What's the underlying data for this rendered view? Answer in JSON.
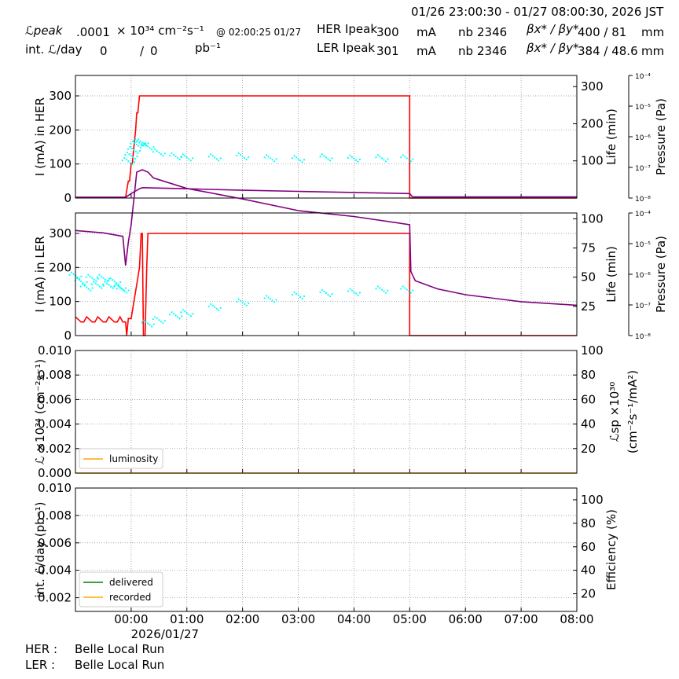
{
  "header": {
    "time_range": "01/26 23:00:30 - 01/27 08:00:30, 2026 JST",
    "lpeak_label": "ℒpeak",
    "lpeak_value": ".0001",
    "lpeak_unit": "× 10³⁴ cm⁻²s⁻¹",
    "lpeak_time": "@ 02:00:25 01/27",
    "intl_label": "int. ℒ/day",
    "intl_delivered": "0",
    "intl_sep": "/",
    "intl_recorded": "0",
    "intl_unit": "pb⁻¹",
    "her_label": "HER Ipeak",
    "her_ipeak": "300",
    "her_unit": "mA",
    "her_nb_label": "nb",
    "her_nb": "2346",
    "her_beta_label": "βx* / βy*",
    "her_beta": "400  / 81",
    "her_beta_unit": "mm",
    "ler_label": "LER Ipeak",
    "ler_ipeak": "301",
    "ler_unit": "mA",
    "ler_nb_label": "nb",
    "ler_nb": "2346",
    "ler_beta_label": "βx* / βy*",
    "ler_beta": "384  / 48.6",
    "ler_beta_unit": "mm"
  },
  "footer": {
    "her_label": "HER :",
    "her_mode": "Belle Local Run",
    "ler_label": "LER :",
    "ler_mode": "Belle Local Run"
  },
  "chart_data": [
    {
      "type": "line",
      "ylabel": "I (mA) in HER",
      "ylabel_right": "Life (min)",
      "ylabel_pressure": "Pressure (Pa)",
      "ylim": [
        0,
        360
      ],
      "yticks": [
        0,
        100,
        200,
        300
      ],
      "ylim_right": [
        0,
        330
      ],
      "yticks_right": [
        100,
        200,
        300
      ],
      "pressure_ticks": [
        "10⁻⁸",
        "10⁻⁷",
        "10⁻⁶",
        "10⁻⁵",
        "10⁻⁴"
      ],
      "xlim": [
        -1.0,
        8.0
      ],
      "grid": true,
      "series": [
        {
          "role": "current",
          "color": "#ff0000",
          "x": [
            -1.0,
            -0.1,
            -0.05,
            -0.03,
            0.0,
            0.02,
            0.05,
            0.08,
            0.1,
            0.12,
            0.15,
            5.0,
            5.0,
            8.0
          ],
          "y": [
            2,
            2,
            50,
            50,
            100,
            100,
            150,
            200,
            250,
            250,
            300,
            300,
            0,
            0
          ]
        },
        {
          "role": "lifetime",
          "color": "#00ffff",
          "style": "scatter",
          "x": [
            -0.05,
            0.0,
            0.05,
            0.1,
            0.15,
            0.2,
            0.3,
            0.5,
            0.8,
            1.0,
            1.5,
            2.0,
            2.5,
            3.0,
            3.5,
            4.0,
            4.5,
            4.95
          ],
          "y": [
            95,
            110,
            125,
            140,
            145,
            145,
            135,
            118,
            108,
            105,
            105,
            108,
            103,
            101,
            105,
            102,
            103,
            103
          ]
        },
        {
          "role": "pressure",
          "color": "#800080",
          "x": [
            -1.0,
            -0.1,
            0.0,
            0.15,
            0.2,
            1.0,
            2.0,
            3.0,
            4.0,
            5.0,
            5.05,
            8.0
          ],
          "y": [
            2,
            2,
            12,
            25,
            28,
            25,
            21,
            18,
            15,
            12,
            3,
            3
          ]
        }
      ]
    },
    {
      "type": "line",
      "ylabel": "I (mA) in LER",
      "ylabel_right": "Life (min)",
      "ylabel_pressure": "Pressure (Pa)",
      "ylim": [
        0,
        360
      ],
      "yticks": [
        0,
        100,
        200,
        300
      ],
      "ylim_right": [
        0,
        105
      ],
      "yticks_right": [
        25,
        50,
        75,
        100
      ],
      "pressure_ticks": [
        "10⁻⁸",
        "10⁻⁷",
        "10⁻⁶",
        "10⁻⁵",
        "10⁻⁴"
      ],
      "xlim": [
        -1.0,
        8.0
      ],
      "grid": true,
      "series": [
        {
          "role": "current",
          "color": "#ff0000",
          "x": [
            -1.0,
            -0.9,
            -0.85,
            -0.8,
            -0.7,
            -0.65,
            -0.6,
            -0.5,
            -0.45,
            -0.4,
            -0.3,
            -0.25,
            -0.2,
            -0.15,
            -0.1,
            -0.08,
            -0.05,
            0.0,
            0.05,
            0.1,
            0.15,
            0.18,
            0.2,
            0.22,
            0.25,
            0.28,
            0.3,
            0.32,
            5.0,
            5.0,
            8.0
          ],
          "y": [
            55,
            40,
            40,
            55,
            40,
            40,
            55,
            40,
            40,
            55,
            40,
            40,
            55,
            40,
            40,
            0,
            50,
            50,
            100,
            150,
            200,
            300,
            300,
            0,
            0,
            200,
            300,
            300,
            300,
            0,
            0
          ]
        },
        {
          "role": "lifetime",
          "color": "#00ffff",
          "style": "scatter",
          "x": [
            -1.0,
            -0.9,
            -0.8,
            -0.7,
            -0.6,
            -0.5,
            -0.4,
            -0.3,
            -0.2,
            -0.15,
            0.3,
            0.5,
            0.8,
            1.0,
            1.5,
            2.0,
            2.5,
            3.0,
            3.5,
            4.0,
            4.5,
            4.95
          ],
          "y": [
            50,
            45,
            40,
            48,
            42,
            48,
            42,
            45,
            40,
            38,
            9,
            12,
            16,
            18,
            23,
            27,
            30,
            33,
            35,
            36,
            38,
            38
          ]
        },
        {
          "role": "pressure",
          "color": "#800080",
          "x": [
            -1.0,
            -0.5,
            -0.15,
            -0.1,
            -0.05,
            0.0,
            0.1,
            0.2,
            0.3,
            0.4,
            1.0,
            2.0,
            3.0,
            4.0,
            5.0,
            5.02,
            5.1,
            5.5,
            6.0,
            7.0,
            8.0
          ],
          "y": [
            90,
            88,
            85,
            60,
            80,
            95,
            140,
            142,
            140,
            135,
            126,
            117,
            107,
            102,
            95,
            55,
            47,
            40,
            35,
            29,
            26
          ]
        }
      ]
    },
    {
      "type": "line",
      "ylabel": "ℒ ×10³⁴ (cm⁻²s⁻¹)",
      "ylabel_right_1": "ℒsp ×10³⁰",
      "ylabel_right_2": "(cm⁻²s⁻¹/mA²)",
      "ylim": [
        0,
        0.01
      ],
      "yticks": [
        "0.000",
        "0.002",
        "0.004",
        "0.006",
        "0.008",
        "0.010"
      ],
      "ylim_right": [
        0,
        100
      ],
      "yticks_right": [
        20,
        40,
        60,
        80,
        100
      ],
      "xlim": [
        -1.0,
        8.0
      ],
      "grid": true,
      "legend": "lower-left",
      "series": [
        {
          "name": "luminosity",
          "color": "#ffa500",
          "x": [
            -1.0,
            8.0
          ],
          "y": [
            0,
            0
          ]
        }
      ]
    },
    {
      "type": "line",
      "ylabel": "int. ℒ/day (pb⁻¹)",
      "ylabel_right": "Efficiency (%)",
      "ylim": [
        0.001,
        0.01
      ],
      "yticks": [
        "0.002",
        "0.004",
        "0.006",
        "0.008",
        "0.010"
      ],
      "ylim_right": [
        5,
        110
      ],
      "yticks_right": [
        20,
        40,
        60,
        80,
        100
      ],
      "xlim": [
        -1.0,
        8.0
      ],
      "grid": true,
      "legend": "lower-left",
      "series": [
        {
          "name": "delivered",
          "color": "#008000",
          "x": [],
          "y": []
        },
        {
          "name": "recorded",
          "color": "#ffa500",
          "x": [],
          "y": []
        }
      ]
    }
  ],
  "x_axis": {
    "ticks": [
      "00:00",
      "01:00",
      "02:00",
      "03:00",
      "04:00",
      "05:00",
      "06:00",
      "07:00",
      "08:00"
    ],
    "date_label": "2026/01/27"
  }
}
